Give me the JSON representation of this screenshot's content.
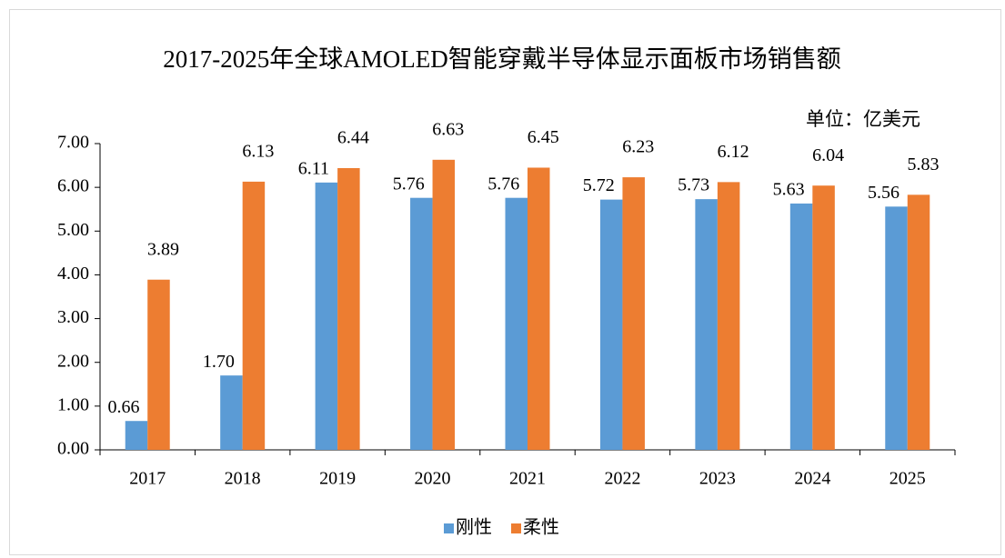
{
  "chart_data": {
    "type": "bar",
    "title": "2017-2025年全球AMOLED智能穿戴半导体显示面板市场销售额",
    "annotation": "单位：亿美元",
    "categories": [
      "2017",
      "2018",
      "2019",
      "2020",
      "2021",
      "2022",
      "2023",
      "2024",
      "2025"
    ],
    "series": [
      {
        "name": "刚性",
        "color": "#5b9bd5",
        "values": [
          0.66,
          1.7,
          6.11,
          5.76,
          5.76,
          5.72,
          5.73,
          5.63,
          5.56
        ],
        "value_labels": [
          "0.66",
          "1.70",
          "6.11",
          "5.76",
          "5.76",
          "5.72",
          "5.73",
          "5.63",
          "5.56"
        ]
      },
      {
        "name": "柔性",
        "color": "#ed7d31",
        "values": [
          3.89,
          6.13,
          6.44,
          6.63,
          6.45,
          6.23,
          6.12,
          6.04,
          5.83
        ],
        "value_labels": [
          "3.89",
          "6.13",
          "6.44",
          "6.63",
          "6.45",
          "6.23",
          "6.12",
          "6.04",
          "5.83"
        ]
      }
    ],
    "ylim": [
      0,
      7
    ],
    "yticks": [
      {
        "value": 0,
        "label": "0.00"
      },
      {
        "value": 1,
        "label": "1.00"
      },
      {
        "value": 2,
        "label": "2.00"
      },
      {
        "value": 3,
        "label": "3.00"
      },
      {
        "value": 4,
        "label": "4.00"
      },
      {
        "value": 5,
        "label": "5.00"
      },
      {
        "value": 6,
        "label": "6.00"
      },
      {
        "value": 7,
        "label": "7.00"
      }
    ],
    "legend": "bottom"
  }
}
